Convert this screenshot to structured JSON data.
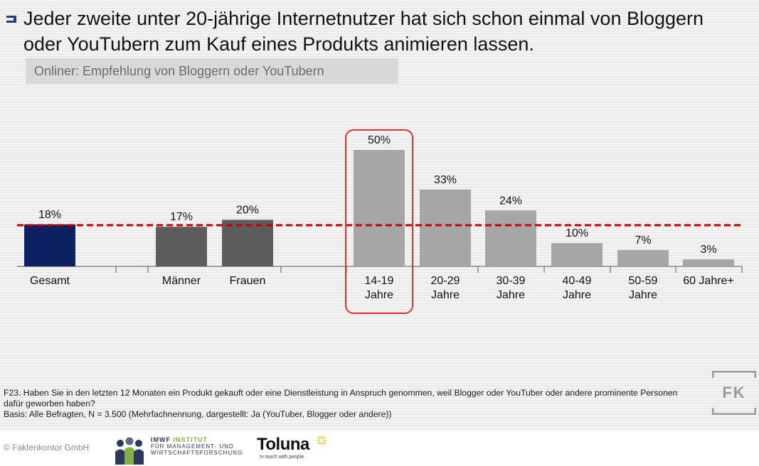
{
  "title": "Jeder zweite unter 20-jährige Internetnutzer hat sich schon einmal von Bloggern oder YouTubern zum Kauf eines Produkts animieren lassen.",
  "subtitle": "Onliner: Empfehlung von Bloggern oder YouTubern",
  "chart_data": {
    "type": "bar",
    "categories": [
      "Gesamt",
      "Männer",
      "Frauen",
      "14-19\nJahre",
      "20-29\nJahre",
      "30-39\nJahre",
      "40-49\nJahre",
      "50-59\nJahre",
      "60 Jahre+"
    ],
    "values": [
      18,
      17,
      20,
      50,
      33,
      24,
      10,
      7,
      3
    ],
    "value_labels": [
      "18%",
      "17%",
      "20%",
      "50%",
      "33%",
      "24%",
      "10%",
      "7%",
      "3%"
    ],
    "groups": [
      "total",
      "gender",
      "gender",
      "age",
      "age",
      "age",
      "age",
      "age",
      "age"
    ],
    "reference_line": 18,
    "highlight_category": "14-19\nJahre",
    "ylim": [
      0,
      55
    ],
    "colors": {
      "total": "#0d2163",
      "gender": "#5d5d5d",
      "age": "#a6a6a6",
      "reference_line": "#c00000",
      "highlight": "#e03030",
      "axis": "#555555"
    }
  },
  "footnote": {
    "question": "F23. Haben Sie in den letzten 12 Monaten ein Produkt gekauft oder eine Dienstleistung in Anspruch genommen, weil Blogger oder YouTuber oder andere prominente Personen dafür geworben haben?",
    "basis": "Basis: Alle Befragten, N = 3.500 (Mehrfachnennung, dargestellt: Ja (YouTuber, Blogger oder andere))"
  },
  "brand": {
    "logo": "FK"
  },
  "footer": {
    "copyright": "© Faktenkontor GmbH",
    "imwf": {
      "line1_a": "IMWF ",
      "line1_b": "INSTITUT",
      "line2": "FÜR MANAGEMENT- UND",
      "line3": "WIRTSCHAFTSFORSCHUNG"
    },
    "toluna": {
      "name": "Toluna",
      "tagline": "In touch with people"
    }
  }
}
